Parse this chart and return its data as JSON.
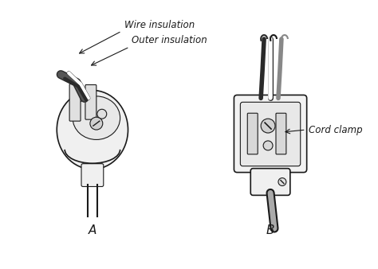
{
  "title": "",
  "background_color": "#ffffff",
  "label_A": "A",
  "label_B": "B",
  "annotation_wire_insulation": "Wire insulation",
  "annotation_outer_insulation": "Outer insulation",
  "annotation_cord_clamp": "Cord clamp",
  "line_color": "#1a1a1a",
  "fill_color": "#ffffff",
  "dark_color": "#2a2a2a",
  "gray_color": "#888888",
  "light_gray": "#cccccc",
  "font_size_label": 11,
  "font_size_annotation": 8.5
}
